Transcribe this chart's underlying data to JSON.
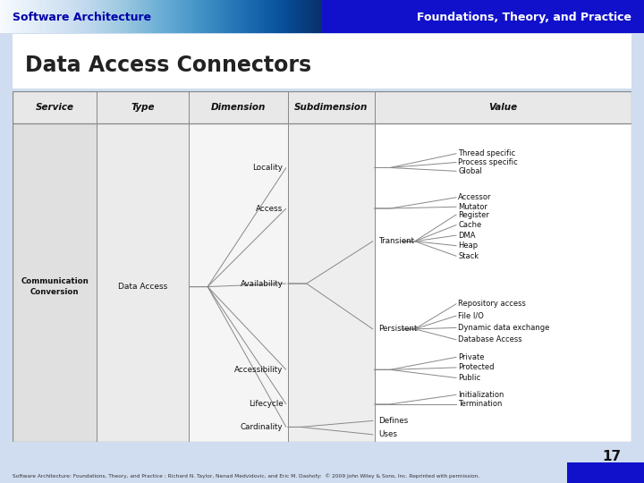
{
  "title_left": "Software Architecture",
  "title_right": "Foundations, Theory, and Practice",
  "slide_title": "Data Access Connectors",
  "page_number": "17",
  "footer": "Software Architecture: Foundations, Theory, and Practice : Richard N. Taylor, Nenad Medvidovic, and Eric M. Dashofy:  © 2009 John Wiley & Sons, Inc. Reprinted with permission.",
  "header_bg_left": "#aabbee",
  "header_bg_right": "#1111cc",
  "header_text_color_left": "#0000aa",
  "header_text_color_right": "#ffffff",
  "body_bg": "#ffffff",
  "slide_bg": "#d0ddf0",
  "col1_bg": "#e0e0e0",
  "col2_bg": "#ebebeb",
  "col3_bg": "#f5f5f5",
  "col4_bg": "#eeeeee",
  "header_row_bg": "#e8e8e8",
  "line_color": "#888888",
  "text_color": "#111111",
  "columns": [
    "Service",
    "Type",
    "Dimension",
    "Subdimension",
    "Value"
  ],
  "dimension_items": [
    "Locality",
    "Access",
    "Availability",
    "Accessibility",
    "Lifecycle",
    "Cardinality"
  ],
  "value_locality": [
    "Thread specific",
    "Process specific",
    "Global"
  ],
  "value_access": [
    "Accessor",
    "Mutator"
  ],
  "value_transient": [
    "Register",
    "Cache",
    "DMA",
    "Heap",
    "Stack"
  ],
  "value_persistent": [
    "Repository access",
    "File I/O",
    "Dynamic data exchange",
    "Database Access"
  ],
  "value_accessibility": [
    "Private",
    "Protected",
    "Public"
  ],
  "value_lifecycle": [
    "Initialization",
    "Termination"
  ],
  "value_cardinality": [
    "Defines",
    "Uses"
  ]
}
